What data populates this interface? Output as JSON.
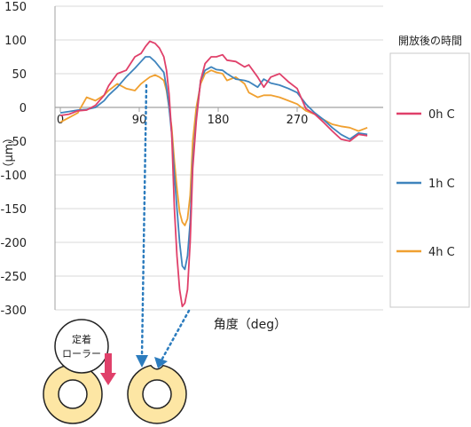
{
  "chart_data": {
    "type": "line",
    "title": "",
    "xlabel": "角度（deg）",
    "ylabel": "（μm）",
    "xlim": [
      0,
      360
    ],
    "ylim": [
      -300,
      150
    ],
    "x_ticks": [
      "0",
      "90",
      "180",
      "270"
    ],
    "x_tick_values": [
      0,
      90,
      180,
      270
    ],
    "y_ticks": [
      150,
      100,
      50,
      0,
      -50,
      -100,
      -150,
      -200,
      -250,
      -300
    ],
    "legend_title": "開放後の時間",
    "legend_position": "right",
    "series": [
      {
        "name": "0h C",
        "color": "#e0406a",
        "x": [
          0,
          10,
          20,
          30,
          40,
          50,
          55,
          65,
          75,
          85,
          92,
          97,
          102,
          108,
          113,
          118,
          121,
          124,
          127,
          130,
          133,
          136,
          139,
          142,
          145,
          148,
          151,
          155,
          160,
          165,
          172,
          178,
          185,
          190,
          200,
          210,
          215,
          225,
          232,
          240,
          250,
          260,
          270,
          280,
          290,
          300,
          310,
          320,
          330,
          340,
          350
        ],
        "y": [
          -12,
          -10,
          -5,
          -4,
          3,
          18,
          32,
          50,
          55,
          75,
          80,
          90,
          98,
          95,
          88,
          75,
          55,
          20,
          -40,
          -150,
          -220,
          -270,
          -295,
          -290,
          -270,
          -200,
          -90,
          -20,
          40,
          65,
          75,
          75,
          78,
          70,
          68,
          60,
          63,
          45,
          30,
          45,
          50,
          38,
          28,
          -2,
          -10,
          -22,
          -35,
          -47,
          -50,
          -40,
          -42
        ]
      },
      {
        "name": "1h C",
        "color": "#3f84bd",
        "x": [
          0,
          10,
          20,
          30,
          40,
          50,
          55,
          65,
          75,
          85,
          92,
          97,
          102,
          108,
          113,
          118,
          121,
          124,
          127,
          130,
          133,
          136,
          139,
          142,
          145,
          148,
          151,
          155,
          160,
          165,
          172,
          178,
          185,
          190,
          200,
          210,
          215,
          225,
          232,
          240,
          250,
          260,
          270,
          280,
          290,
          300,
          310,
          320,
          330,
          340,
          350
        ],
        "y": [
          -8,
          -6,
          -4,
          -3,
          0,
          10,
          18,
          30,
          45,
          58,
          68,
          75,
          75,
          68,
          60,
          52,
          30,
          0,
          -40,
          -100,
          -150,
          -200,
          -235,
          -240,
          -220,
          -170,
          -80,
          -15,
          40,
          55,
          60,
          56,
          55,
          50,
          42,
          40,
          38,
          30,
          42,
          36,
          33,
          28,
          22,
          5,
          -8,
          -18,
          -30,
          -40,
          -47,
          -38,
          -40
        ]
      },
      {
        "name": "4h C",
        "color": "#f0a030",
        "x": [
          0,
          10,
          20,
          30,
          40,
          50,
          55,
          65,
          75,
          85,
          92,
          97,
          102,
          108,
          113,
          118,
          121,
          124,
          127,
          130,
          133,
          136,
          139,
          142,
          145,
          148,
          151,
          155,
          160,
          165,
          172,
          178,
          185,
          190,
          200,
          210,
          215,
          225,
          232,
          240,
          250,
          260,
          270,
          280,
          290,
          300,
          310,
          320,
          330,
          340,
          350
        ],
        "y": [
          -22,
          -15,
          -8,
          15,
          10,
          18,
          25,
          35,
          28,
          25,
          35,
          40,
          45,
          48,
          45,
          40,
          25,
          0,
          -30,
          -80,
          -120,
          -155,
          -170,
          -175,
          -165,
          -130,
          -50,
          0,
          35,
          50,
          55,
          52,
          50,
          40,
          45,
          35,
          22,
          15,
          18,
          18,
          15,
          10,
          5,
          -5,
          -10,
          -18,
          -25,
          -28,
          -30,
          -35,
          -30
        ]
      }
    ]
  },
  "diagram": {
    "roller_label_line1": "定着",
    "roller_label_line2": "ローラー",
    "colors": {
      "ring_fill": "#fde6a4",
      "arrow": "#e0406a",
      "dotted_arrow": "#2c7cbe",
      "axis": "#a0a0a0",
      "grid": "#d9d9d9"
    }
  }
}
